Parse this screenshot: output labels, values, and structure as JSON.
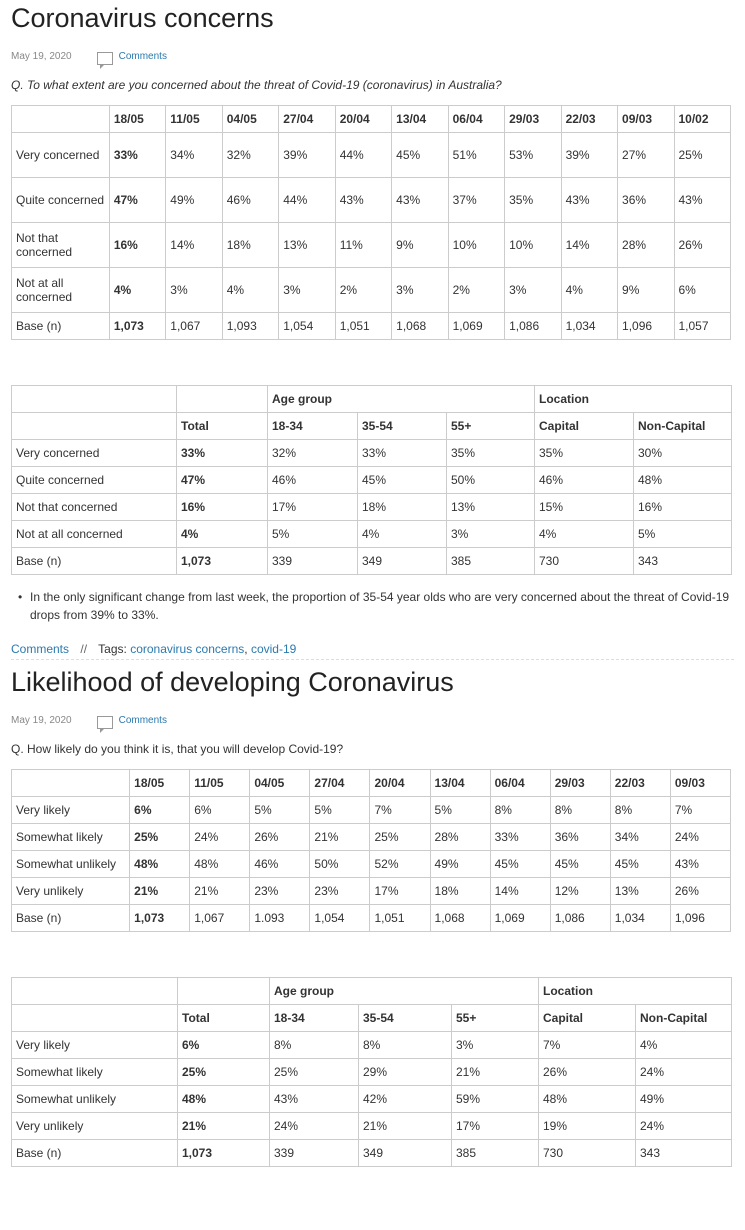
{
  "section1": {
    "title": "Coronavirus concerns",
    "date": "May 19, 2020",
    "comments_label": "Comments",
    "question": "Q. To what extent are you concerned about the threat of Covid-19 (coronavirus) in Australia?",
    "table1": {
      "headers": [
        "",
        "18/05",
        "11/05",
        "04/05",
        "27/04",
        "20/04",
        "13/04",
        "06/04",
        "29/03",
        "22/03",
        "09/03",
        "10/02"
      ],
      "rows": [
        [
          "Very concerned",
          "33%",
          "34%",
          "32%",
          "39%",
          "44%",
          "45%",
          "51%",
          "53%",
          "39%",
          "27%",
          "25%"
        ],
        [
          "Quite concerned",
          "47%",
          "49%",
          "46%",
          "44%",
          "43%",
          "43%",
          "37%",
          "35%",
          "43%",
          "36%",
          "43%"
        ],
        [
          "Not that concerned",
          "16%",
          "14%",
          "18%",
          "13%",
          "11%",
          "9%",
          "10%",
          "10%",
          "14%",
          "28%",
          "26%"
        ],
        [
          "Not at all concerned",
          "4%",
          "3%",
          "4%",
          "3%",
          "2%",
          "3%",
          "2%",
          "3%",
          "4%",
          "9%",
          "6%"
        ],
        [
          "Base (n)",
          "1,073",
          "1,067",
          "1,093",
          "1,054",
          "1,051",
          "1,068",
          "1,069",
          "1,086",
          "1,034",
          "1,096",
          "1,057"
        ]
      ]
    },
    "table2": {
      "group_headers": [
        "",
        "",
        "Age group",
        "Location"
      ],
      "headers": [
        "",
        "Total",
        "18-34",
        "35-54",
        "55+",
        "Capital",
        "Non-Capital"
      ],
      "rows": [
        [
          "Very concerned",
          "33%",
          "32%",
          "33%",
          "35%",
          "35%",
          "30%"
        ],
        [
          "Quite concerned",
          "47%",
          "46%",
          "45%",
          "50%",
          "46%",
          "48%"
        ],
        [
          "Not that concerned",
          "16%",
          "17%",
          "18%",
          "13%",
          "15%",
          "16%"
        ],
        [
          "Not at all concerned",
          "4%",
          "5%",
          "4%",
          "3%",
          "4%",
          "5%"
        ],
        [
          "Base (n)",
          "1,073",
          "339",
          "349",
          "385",
          "730",
          "343"
        ]
      ]
    },
    "bullet": "In the only significant change from last week, the proportion of 35-54 year olds who are very concerned about the threat of Covid-19 drops from 39% to 33%.",
    "footer": {
      "comments_label": "Comments",
      "separator": "//",
      "tags_label": "Tags:",
      "tags": [
        "coronavirus concerns",
        "covid-19"
      ],
      "tag_sep": ","
    }
  },
  "section2": {
    "title": "Likelihood of developing Coronavirus",
    "date": "May 19, 2020",
    "comments_label": "Comments",
    "question": "Q. How likely do you think it is, that you will develop Covid-19?",
    "table1": {
      "headers": [
        "",
        "18/05",
        "11/05",
        "04/05",
        "27/04",
        "20/04",
        "13/04",
        "06/04",
        "29/03",
        "22/03",
        "09/03"
      ],
      "rows": [
        [
          "Very likely",
          "6%",
          "6%",
          "5%",
          "5%",
          "7%",
          "5%",
          "8%",
          "8%",
          "8%",
          "7%"
        ],
        [
          "Somewhat likely",
          "25%",
          "24%",
          "26%",
          "21%",
          "25%",
          "28%",
          "33%",
          "36%",
          "34%",
          "24%"
        ],
        [
          "Somewhat unlikely",
          "48%",
          "48%",
          "46%",
          "50%",
          "52%",
          "49%",
          "45%",
          "45%",
          "45%",
          "43%"
        ],
        [
          "Very unlikely",
          "21%",
          "21%",
          "23%",
          "23%",
          "17%",
          "18%",
          "14%",
          "12%",
          "13%",
          "26%"
        ],
        [
          "Base (n)",
          "1,073",
          "1,067",
          "1.093",
          "1,054",
          "1,051",
          "1,068",
          "1,069",
          "1,086",
          "1,034",
          "1,096"
        ]
      ]
    },
    "table2": {
      "group_headers": [
        "",
        "",
        "Age group",
        "Location"
      ],
      "headers": [
        "",
        "Total",
        "18-34",
        "35-54",
        "55+",
        "Capital",
        "Non-Capital"
      ],
      "rows": [
        [
          "Very likely",
          "6%",
          "8%",
          "8%",
          "3%",
          "7%",
          "4%"
        ],
        [
          "Somewhat likely",
          "25%",
          "25%",
          "29%",
          "21%",
          "26%",
          "24%"
        ],
        [
          "Somewhat unlikely",
          "48%",
          "43%",
          "42%",
          "59%",
          "48%",
          "49%"
        ],
        [
          "Very unlikely",
          "21%",
          "24%",
          "21%",
          "17%",
          "19%",
          "24%"
        ],
        [
          "Base (n)",
          "1,073",
          "339",
          "349",
          "385",
          "730",
          "343"
        ]
      ]
    }
  }
}
